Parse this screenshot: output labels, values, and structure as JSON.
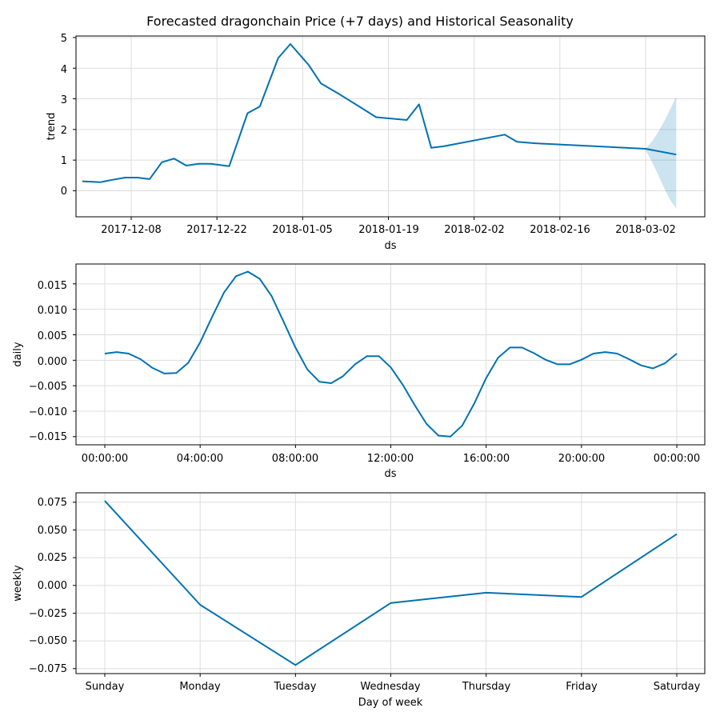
{
  "figure_title": "Forecasted dragonchain Price (+7 days) and Historical Seasonality",
  "colors": {
    "line": "#0072b2",
    "band": "#0072b2",
    "grid": "#dddddd"
  },
  "chart_data": [
    {
      "type": "line",
      "ylabel": "trend",
      "xlabel": "ds",
      "x_tick_labels": [
        "2017-12-08",
        "2017-12-22",
        "2018-01-05",
        "2018-01-19",
        "2018-02-02",
        "2018-02-16",
        "2018-03-02"
      ],
      "y_tick_labels": [
        "0",
        "1",
        "2",
        "3",
        "4",
        "5"
      ],
      "ylim": [
        -0.85,
        5.05
      ],
      "grid": true,
      "series": [
        {
          "x": [
            "2017-11-30",
            "2017-12-03",
            "2017-12-05",
            "2017-12-07",
            "2017-12-09",
            "2017-12-11",
            "2017-12-13",
            "2017-12-15",
            "2017-12-17",
            "2017-12-19",
            "2017-12-21",
            "2017-12-24",
            "2017-12-27",
            "2017-12-29",
            "2018-01-01",
            "2018-01-03",
            "2018-01-06",
            "2018-01-08",
            "2018-01-11",
            "2018-01-14",
            "2018-01-17",
            "2018-01-22",
            "2018-01-24",
            "2018-01-26",
            "2018-01-28",
            "2018-02-07",
            "2018-02-09",
            "2018-02-12",
            "2018-03-02",
            "2018-03-07"
          ],
          "y": [
            0.31,
            0.28,
            0.36,
            0.43,
            0.43,
            0.38,
            0.93,
            1.05,
            0.82,
            0.88,
            0.88,
            0.8,
            2.53,
            2.75,
            4.33,
            4.79,
            4.1,
            3.5,
            3.15,
            2.78,
            2.4,
            2.31,
            2.82,
            1.4,
            1.45,
            1.83,
            1.6,
            1.55,
            1.37,
            1.18
          ]
        }
      ],
      "uncertainty_band": {
        "x": [
          "2018-03-02",
          "2018-03-03",
          "2018-03-04",
          "2018-03-05",
          "2018-03-06",
          "2018-03-07"
        ],
        "lower": [
          1.33,
          0.95,
          0.55,
          0.1,
          -0.3,
          -0.58
        ],
        "upper": [
          1.38,
          1.6,
          1.9,
          2.25,
          2.65,
          3.08
        ]
      }
    },
    {
      "type": "line",
      "ylabel": "daily",
      "xlabel": "ds",
      "x_tick_labels": [
        "00:00:00",
        "04:00:00",
        "08:00:00",
        "12:00:00",
        "16:00:00",
        "20:00:00",
        "00:00:00"
      ],
      "y_tick_labels": [
        "0.015",
        "0.010",
        "0.005",
        "0.000",
        "−0.005",
        "−0.010",
        "−0.015"
      ],
      "ylim": [
        -0.0166,
        0.0189
      ],
      "grid": true,
      "series": [
        {
          "x": [
            0,
            0.5,
            1,
            1.5,
            2,
            2.5,
            3,
            3.5,
            4,
            4.5,
            5,
            5.5,
            6,
            6.5,
            7,
            7.5,
            8,
            8.5,
            9,
            9.5,
            10,
            10.5,
            11,
            11.5,
            12,
            12.5,
            13,
            13.5,
            14,
            14.5,
            15,
            15.5,
            16,
            16.5,
            17,
            17.5,
            18,
            18.5,
            19,
            19.5,
            20,
            20.5,
            21,
            21.5,
            22,
            22.5,
            23,
            23.5,
            24
          ],
          "y": [
            0.0013,
            0.0016,
            0.0013,
            0.0002,
            -0.0015,
            -0.0026,
            -0.0025,
            -0.0005,
            0.0035,
            0.0085,
            0.0133,
            0.0165,
            0.0174,
            0.016,
            0.0126,
            0.0076,
            0.0025,
            -0.0018,
            -0.0042,
            -0.0045,
            -0.0031,
            -0.0008,
            0.0008,
            0.0008,
            -0.0014,
            -0.0048,
            -0.0088,
            -0.0125,
            -0.0148,
            -0.015,
            -0.0128,
            -0.0085,
            -0.0035,
            0.0005,
            0.0025,
            0.0025,
            0.0014,
            0.0001,
            -0.0008,
            -0.0008,
            0.0001,
            0.0013,
            0.0016,
            0.0013,
            0.0002,
            -0.001,
            -0.0016,
            -0.0006,
            0.0013
          ]
        }
      ]
    },
    {
      "type": "line",
      "ylabel": "weekly",
      "xlabel": "Day of week",
      "categories": [
        "Sunday",
        "Monday",
        "Tuesday",
        "Wednesday",
        "Thursday",
        "Friday",
        "Saturday"
      ],
      "y_tick_labels": [
        "0.075",
        "0.050",
        "0.025",
        "0.000",
        "−0.025",
        "−0.050",
        "−0.075"
      ],
      "ylim": [
        -0.0795,
        0.0835
      ],
      "grid": true,
      "series": [
        {
          "values": [
            0.0762,
            -0.0175,
            -0.0718,
            -0.0158,
            -0.0066,
            -0.0104,
            0.0463
          ]
        }
      ]
    }
  ]
}
